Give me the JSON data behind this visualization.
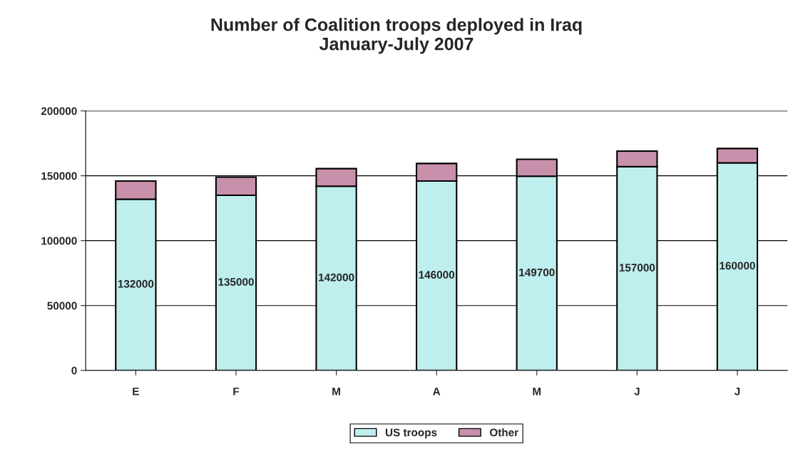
{
  "chart_data": {
    "type": "bar",
    "title": "Number of Coalition troops deployed in Iraq\nJanuary-July 2007",
    "categories": [
      "E",
      "F",
      "M",
      "A",
      "M",
      "J",
      "J"
    ],
    "stacked": true,
    "ylim": [
      0,
      200000
    ],
    "yticks": [
      0,
      50000,
      100000,
      150000,
      200000
    ],
    "grid": "y",
    "legend": "bottom",
    "series": [
      {
        "name": "US troops",
        "color": "#bfeeee",
        "values": [
          132000,
          135000,
          142000,
          146000,
          149700,
          157000,
          160000
        ],
        "value_labels": [
          "132000",
          "135000",
          "142000",
          "146000",
          "149700",
          "157000",
          "160000"
        ]
      },
      {
        "name": "Other",
        "color": "#c890aa",
        "values": [
          14000,
          14000,
          13500,
          13500,
          13000,
          12000,
          11000
        ]
      }
    ]
  }
}
